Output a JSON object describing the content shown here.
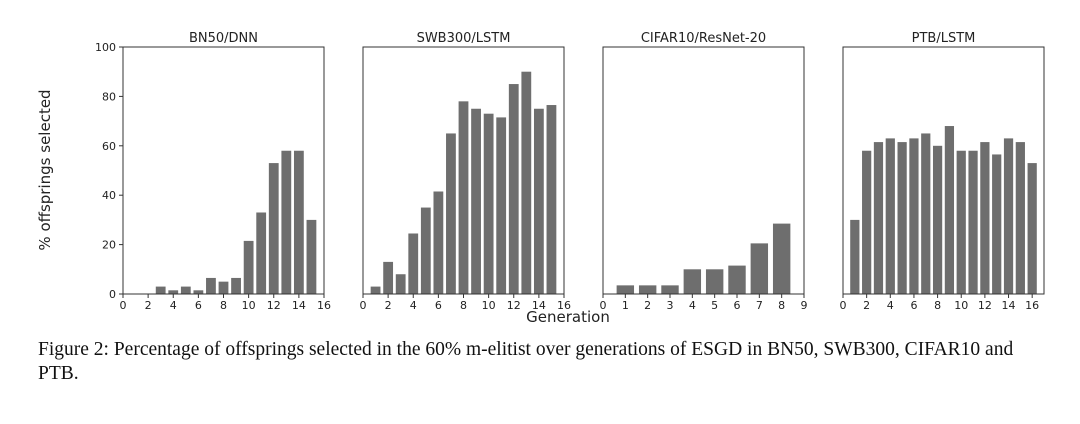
{
  "figure": {
    "ylabel": "% offsprings selected",
    "xlabel": "Generation",
    "caption": "Figure 2: Percentage of offsprings selected in the 60% m-elitist over generations of ESGD in BN50, SWB300, CIFAR10 and PTB.",
    "bar_color": "#6e6e6e"
  },
  "chart_data": [
    {
      "type": "bar",
      "title": "BN50/DNN",
      "x": [
        1,
        2,
        3,
        4,
        5,
        6,
        7,
        8,
        9,
        10,
        11,
        12,
        13,
        14,
        15
      ],
      "values": [
        0,
        0,
        3,
        1.5,
        3,
        1.5,
        6.5,
        5,
        6.5,
        21.5,
        33,
        53,
        58,
        58,
        30
      ],
      "xlim": [
        0,
        16
      ],
      "ylim": [
        0,
        100
      ],
      "xticks": [
        0,
        2,
        4,
        6,
        8,
        10,
        12,
        14,
        16
      ],
      "yticks": [
        0,
        20,
        40,
        60,
        80,
        100
      ]
    },
    {
      "type": "bar",
      "title": "SWB300/LSTM",
      "x": [
        1,
        2,
        3,
        4,
        5,
        6,
        7,
        8,
        9,
        10,
        11,
        12,
        13,
        14,
        15
      ],
      "values": [
        3,
        13,
        8,
        24.5,
        35,
        41.5,
        65,
        78,
        75,
        73,
        71.5,
        85,
        90,
        75,
        76.5
      ],
      "xlim": [
        0,
        16
      ],
      "ylim": [
        0,
        100
      ],
      "xticks": [
        0,
        2,
        4,
        6,
        8,
        10,
        12,
        14,
        16
      ]
    },
    {
      "type": "bar",
      "title": "CIFAR10/ResNet-20",
      "x": [
        1,
        2,
        3,
        4,
        5,
        6,
        7,
        8
      ],
      "values": [
        3.5,
        3.5,
        3.5,
        10,
        10,
        11.5,
        20.5,
        28.5
      ],
      "xlim": [
        0,
        9
      ],
      "ylim": [
        0,
        100
      ],
      "xticks": [
        0,
        1,
        2,
        3,
        4,
        5,
        6,
        7,
        8,
        9
      ]
    },
    {
      "type": "bar",
      "title": "PTB/LSTM",
      "x": [
        1,
        2,
        3,
        4,
        5,
        6,
        7,
        8,
        9,
        10,
        11,
        12,
        13,
        14,
        15,
        16
      ],
      "values": [
        30,
        58,
        61.5,
        63,
        61.5,
        63,
        65,
        60,
        68,
        58,
        58,
        61.5,
        56.5,
        63,
        61.5,
        53
      ],
      "xlim": [
        0,
        17
      ],
      "ylim": [
        0,
        100
      ],
      "xticks": [
        0,
        2,
        4,
        6,
        8,
        10,
        12,
        14,
        16
      ]
    }
  ]
}
